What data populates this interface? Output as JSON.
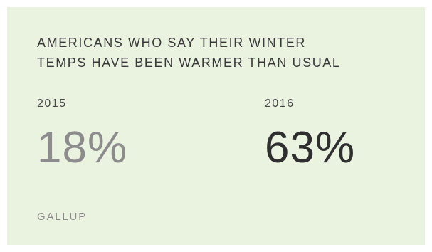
{
  "card": {
    "title_line1": "AMERICANS WHO SAY THEIR WINTER",
    "title_line2": "TEMPS HAVE BEEN WARMER THAN USUAL",
    "stats": [
      {
        "year": "2015",
        "value": "18%",
        "color": "#8c8c8c"
      },
      {
        "year": "2016",
        "value": "63%",
        "color": "#2f2f2f"
      }
    ],
    "source": "GALLUP",
    "background_color": "#eaf2e0"
  }
}
